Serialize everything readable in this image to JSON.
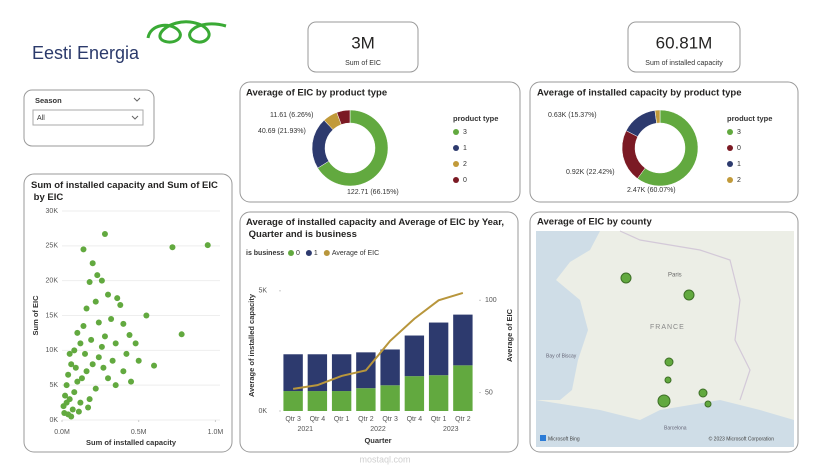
{
  "logo": {
    "text": "Eesti Energia"
  },
  "cards": [
    {
      "value": 3000000,
      "label": "3M",
      "caption": "Sum of EIC"
    },
    {
      "value": 60810000,
      "label": "60.81M",
      "caption": "Sum of installed capacity"
    }
  ],
  "slicer": {
    "title": "Season",
    "selected": "All"
  },
  "chart_data": [
    {
      "type": "donut",
      "title": "Average of EIC by product type",
      "legend_title": "product type",
      "categories": [
        "3",
        "1",
        "2",
        "0"
      ],
      "values": [
        122.71,
        40.69,
        11.61,
        10.5
      ],
      "value_labels": [
        "122.71 (66.15%)",
        "40.69 (21.93%)",
        "11.61 (6.26%)",
        null
      ],
      "colors": [
        "#62a93f",
        "#2d3a6e",
        "#c19a3a",
        "#7b1a24"
      ]
    },
    {
      "type": "donut",
      "title": "Average of installed capacity by product type",
      "legend_title": "product type",
      "categories": [
        "3",
        "0",
        "1",
        "2"
      ],
      "values": [
        2470,
        920,
        630,
        88
      ],
      "value_labels": [
        "2.47K (60.07%)",
        "0.92K (22.42%)",
        "0.63K (15.37%)",
        null
      ],
      "colors": [
        "#62a93f",
        "#7b1a24",
        "#2d3a6e",
        "#c19a3a"
      ]
    },
    {
      "type": "scatter",
      "title": "Sum of installed capacity and Sum of EIC by EIC",
      "x_label": "Sum of installed capacity",
      "y_label": "Sum of EIC",
      "color": "#62a93f",
      "x": [
        280000,
        720000,
        950000,
        780000,
        600000,
        440000,
        550000,
        400000,
        380000,
        300000,
        260000,
        200000,
        180000,
        220000,
        350000,
        420000,
        500000,
        320000,
        280000,
        240000,
        160000,
        140000,
        120000,
        100000,
        80000,
        60000,
        50000,
        40000,
        30000,
        20000,
        10000,
        15000,
        30000,
        50000,
        80000,
        100000,
        130000,
        160000,
        200000,
        240000,
        270000,
        300000,
        350000,
        220000,
        180000,
        120000,
        70000,
        40000,
        90000,
        150000,
        190000,
        260000,
        330000,
        400000,
        450000,
        60000,
        110000,
        170000,
        230000,
        140000,
        360000,
        480000
      ],
      "values": [
        26700,
        24800,
        25100,
        12300,
        7800,
        12200,
        15000,
        13800,
        16500,
        18000,
        20000,
        22500,
        19800,
        17000,
        11000,
        9500,
        8500,
        14500,
        12000,
        14000,
        16000,
        13500,
        11000,
        12500,
        10000,
        8000,
        9500,
        6500,
        5000,
        3500,
        2000,
        1000,
        2500,
        3000,
        4000,
        5500,
        6000,
        7000,
        8000,
        9000,
        7500,
        6000,
        5000,
        4500,
        3000,
        2500,
        1500,
        800,
        7500,
        9500,
        11500,
        10500,
        8500,
        7000,
        5500,
        500,
        1200,
        1800,
        20800,
        24500,
        17500,
        11000
      ],
      "xlim": [
        0,
        1030000
      ],
      "xticks": [
        {
          "value": 0,
          "label": "0.0M"
        },
        {
          "value": 500000,
          "label": "0.5M"
        },
        {
          "value": 1000000,
          "label": "1.0M"
        }
      ],
      "ylim": [
        0,
        30000
      ],
      "yticks": [
        {
          "value": 0,
          "label": "0K"
        },
        {
          "value": 5000,
          "label": "5K"
        },
        {
          "value": 10000,
          "label": "10K"
        },
        {
          "value": 15000,
          "label": "15K"
        },
        {
          "value": 20000,
          "label": "20K"
        },
        {
          "value": 25000,
          "label": "25K"
        },
        {
          "value": 30000,
          "label": "30K"
        }
      ]
    },
    {
      "type": "bar_line",
      "title": "Average of installed capacity and Average of EIC by Year, Quarter and is business",
      "legend_title": "is business",
      "x_label": "Quarter",
      "y_label": "Average of installed capacity",
      "y2_label": "Average of EIC",
      "categories": [
        "Qtr 3",
        "Qtr 4",
        "Qtr 1",
        "Qtr 2",
        "Qtr 3",
        "Qtr 4",
        "Qtr 1",
        "Qtr 2"
      ],
      "years": [
        "2021",
        "2021",
        "2022",
        "2022",
        "2022",
        "2022",
        "2023",
        "2023"
      ],
      "series": [
        {
          "name": "0",
          "color": "#62a93f",
          "values": [
            830,
            830,
            830,
            950,
            1070,
            1450,
            1490,
            1900
          ]
        },
        {
          "name": "1",
          "color": "#2d3a6e",
          "values": [
            1530,
            1530,
            1530,
            1490,
            1490,
            1690,
            2190,
            2110
          ]
        },
        {
          "name": "Average of EIC",
          "color": "#b8963c",
          "axis": "y2",
          "values": [
            52,
            54,
            59,
            62,
            78,
            90,
            100,
            104
          ]
        }
      ],
      "ylim": [
        0,
        5450
      ],
      "yticks": [
        {
          "value": 0,
          "label": "0K"
        },
        {
          "value": 5000,
          "label": "5K"
        }
      ],
      "y2lim": [
        40,
        111
      ],
      "y2ticks": [
        50,
        100
      ]
    }
  ],
  "map": {
    "title": "Average of EIC by county",
    "labels": [
      "Paris",
      "FRANCE",
      "Bay of Biscay",
      "Barcelona"
    ],
    "credit": "Microsoft Bing",
    "copyright": "© 2023 Microsoft Corporation"
  },
  "watermark": "mostaql.com"
}
